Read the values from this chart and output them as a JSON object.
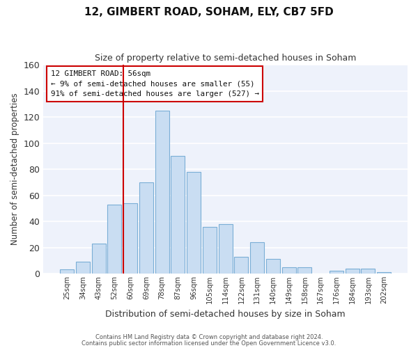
{
  "title": "12, GIMBERT ROAD, SOHAM, ELY, CB7 5FD",
  "subtitle": "Size of property relative to semi-detached houses in Soham",
  "xlabel": "Distribution of semi-detached houses by size in Soham",
  "ylabel": "Number of semi-detached properties",
  "bar_color": "#c9ddf2",
  "bar_edge_color": "#7aaed6",
  "background_color": "#eef2fb",
  "grid_color": "white",
  "annotation_box_edgecolor": "#cc0000",
  "annotation_line_color": "#cc0000",
  "categories": [
    "25sqm",
    "34sqm",
    "43sqm",
    "52sqm",
    "60sqm",
    "69sqm",
    "78sqm",
    "87sqm",
    "96sqm",
    "105sqm",
    "114sqm",
    "122sqm",
    "131sqm",
    "140sqm",
    "149sqm",
    "158sqm",
    "167sqm",
    "176sqm",
    "184sqm",
    "193sqm",
    "202sqm"
  ],
  "values": [
    3,
    9,
    23,
    53,
    54,
    70,
    125,
    90,
    78,
    36,
    38,
    13,
    24,
    11,
    5,
    5,
    0,
    2,
    4,
    4,
    1
  ],
  "ylim": [
    0,
    160
  ],
  "yticks": [
    0,
    20,
    40,
    60,
    80,
    100,
    120,
    140,
    160
  ],
  "property_label": "12 GIMBERT ROAD: 56sqm",
  "pct_smaller": 9,
  "num_smaller": 55,
  "pct_larger": 91,
  "num_larger": 527,
  "vline_bin_index": 4,
  "footer_line1": "Contains HM Land Registry data © Crown copyright and database right 2024.",
  "footer_line2": "Contains public sector information licensed under the Open Government Licence v3.0."
}
